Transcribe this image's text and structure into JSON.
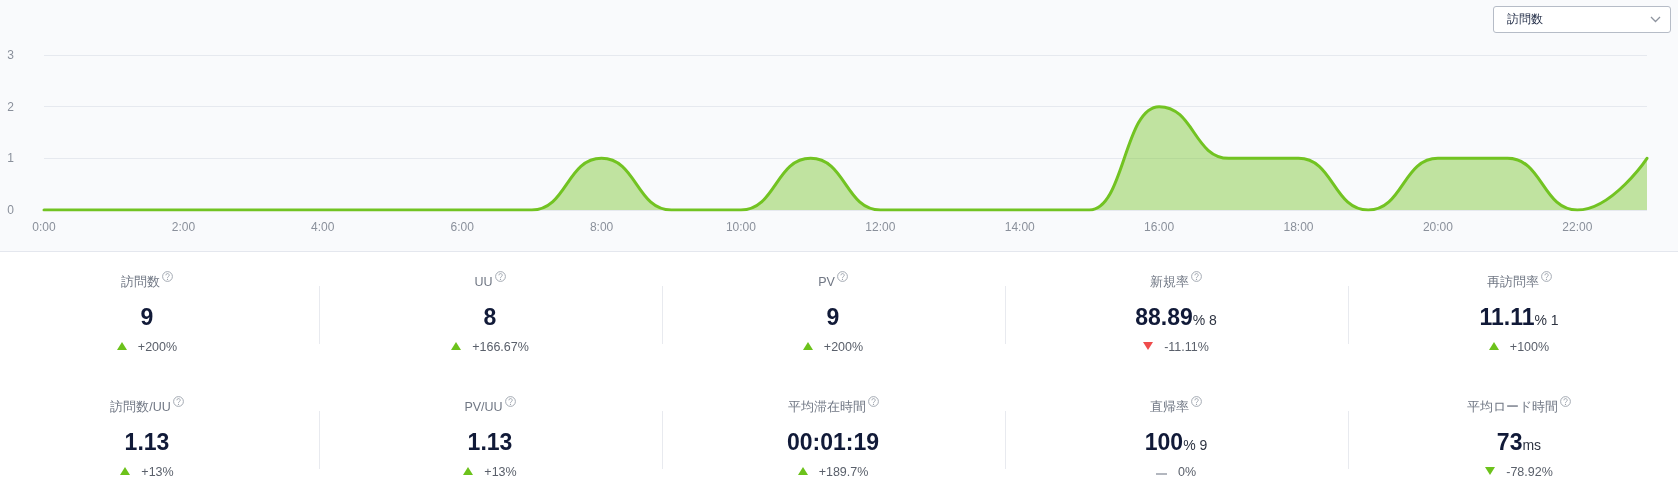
{
  "chart_data": [
    {
      "type": "area",
      "ylabel": "訪問数",
      "x": [
        0,
        1,
        2,
        3,
        4,
        5,
        6,
        7,
        8,
        9,
        10,
        11,
        12,
        13,
        14,
        15,
        16,
        17,
        18,
        19,
        20,
        21,
        22,
        23
      ],
      "values": [
        0,
        0,
        0,
        0,
        0,
        0,
        0,
        0,
        1,
        0,
        0,
        1,
        0,
        0,
        0,
        0,
        2,
        1,
        1,
        0,
        1,
        1,
        0,
        1
      ],
      "color": "#72c322",
      "xlim": [
        0,
        23
      ],
      "xticks": [
        {
          "value": 0,
          "label": "0:00"
        },
        {
          "value": 2,
          "label": "2:00"
        },
        {
          "value": 4,
          "label": "4:00"
        },
        {
          "value": 6,
          "label": "6:00"
        },
        {
          "value": 8,
          "label": "8:00"
        },
        {
          "value": 10,
          "label": "10:00"
        },
        {
          "value": 12,
          "label": "12:00"
        },
        {
          "value": 14,
          "label": "14:00"
        },
        {
          "value": 16,
          "label": "16:00"
        },
        {
          "value": 18,
          "label": "18:00"
        },
        {
          "value": 20,
          "label": "20:00"
        },
        {
          "value": 22,
          "label": "22:00"
        }
      ],
      "ylim": [
        0,
        3
      ],
      "yticks": [
        0,
        1,
        2,
        3
      ],
      "grid": "y"
    },
    {
      "type": "other",
      "categories": [
        "訪問数",
        "UU",
        "PV",
        "新規率",
        "再訪問率",
        "訪問数/UU",
        "PV/UU",
        "平均滞在時間",
        "直帰率",
        "平均ロード時間"
      ],
      "value_labels": [
        "9",
        "8",
        "9",
        "88.89% 8",
        "11.11% 1",
        "1.13",
        "1.13",
        "00:01:19",
        "100% 9",
        "73ms"
      ],
      "annotations": [
        "+200%",
        "+166.67%",
        "+200%",
        "-11.11%",
        "+100%",
        "+13%",
        "+13%",
        "+189.7%",
        "0%",
        "-78.92%"
      ]
    }
  ]
}
